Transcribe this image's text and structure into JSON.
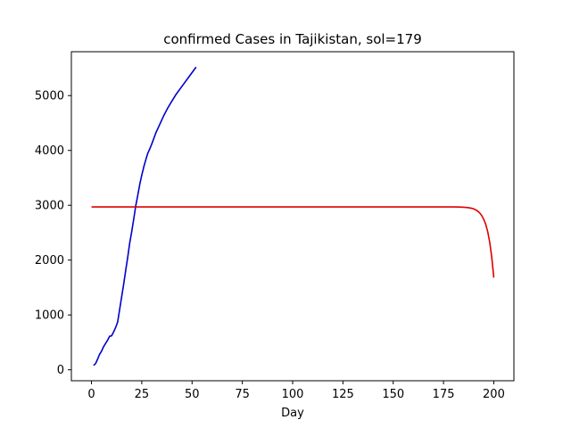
{
  "chart_data": {
    "type": "line",
    "title": "confirmed Cases in Tajikistan, sol=179",
    "xlabel": "Day",
    "ylabel": "",
    "xlim": [
      -10,
      210
    ],
    "ylim": [
      -200,
      5800
    ],
    "xticks": [
      0,
      25,
      50,
      75,
      100,
      125,
      150,
      175,
      200
    ],
    "yticks": [
      0,
      1000,
      2000,
      3000,
      4000,
      5000
    ],
    "grid": false,
    "series": [
      {
        "color": "#0000cc",
        "x": [
          1,
          2,
          3,
          4,
          5,
          6,
          7,
          8,
          9,
          10,
          11,
          12,
          13,
          14,
          15,
          16,
          17,
          18,
          19,
          20,
          21,
          22,
          23,
          24,
          25,
          26,
          27,
          28,
          29,
          30,
          32,
          34,
          36,
          38,
          40,
          42,
          44,
          46,
          48,
          50,
          52
        ],
        "y": [
          80,
          110,
          190,
          280,
          340,
          420,
          480,
          540,
          610,
          620,
          690,
          770,
          870,
          1100,
          1330,
          1560,
          1810,
          2050,
          2310,
          2520,
          2750,
          2990,
          3180,
          3380,
          3550,
          3700,
          3830,
          3950,
          4030,
          4120,
          4320,
          4480,
          4640,
          4780,
          4900,
          5020,
          5120,
          5220,
          5320,
          5420,
          5520
        ]
      },
      {
        "color": "#dd0000",
        "x": [
          0,
          25,
          50,
          75,
          100,
          125,
          150,
          175,
          180,
          183,
          185,
          187,
          189,
          190,
          191,
          192,
          193,
          194,
          195,
          196,
          197,
          198,
          199,
          200
        ],
        "y": [
          2970,
          2970,
          2970,
          2970,
          2970,
          2970,
          2970,
          2970,
          2969,
          2967,
          2963,
          2957,
          2945,
          2934,
          2917,
          2893,
          2860,
          2812,
          2745,
          2650,
          2515,
          2320,
          2050,
          1680
        ]
      }
    ]
  }
}
